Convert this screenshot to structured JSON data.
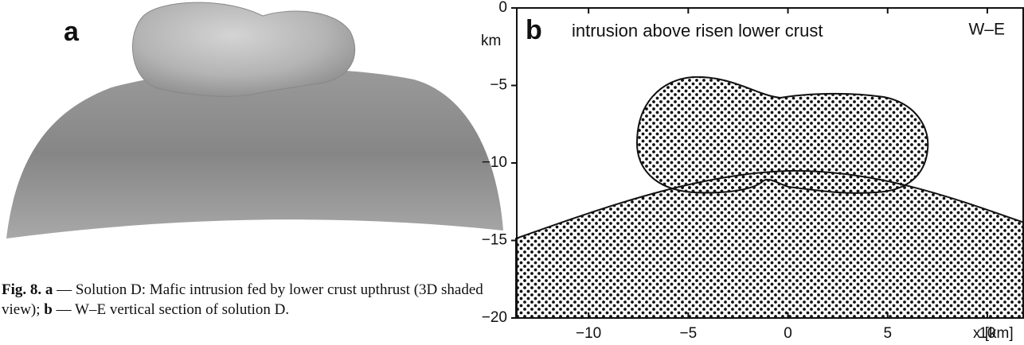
{
  "panel_a": {
    "label": "a"
  },
  "caption": {
    "fig": "Fig. 8.",
    "a": "a",
    "a_text": " — Solution D: Mafic intrusion fed by lower crust upthrust (3D shaded view); ",
    "b": "b",
    "b_text": " — W–E vertical section of solution D."
  },
  "chart_data": {
    "type": "section",
    "panel_label": "b",
    "title": "intrusion above risen lower crust",
    "direction": "W–E",
    "ylabel": "km",
    "xlabel": "x [km]",
    "xlim": [
      -13.6,
      11.8
    ],
    "ylim": [
      -20,
      0
    ],
    "xticks": [
      {
        "value": -10,
        "label": "−10"
      },
      {
        "value": -5,
        "label": "−5"
      },
      0,
      5,
      10
    ],
    "yticks": [
      0,
      {
        "value": -5,
        "label": "−5"
      },
      {
        "value": -10,
        "label": "−10"
      },
      {
        "value": -15,
        "label": "−15"
      },
      {
        "value": -20,
        "label": "−20"
      }
    ]
  }
}
